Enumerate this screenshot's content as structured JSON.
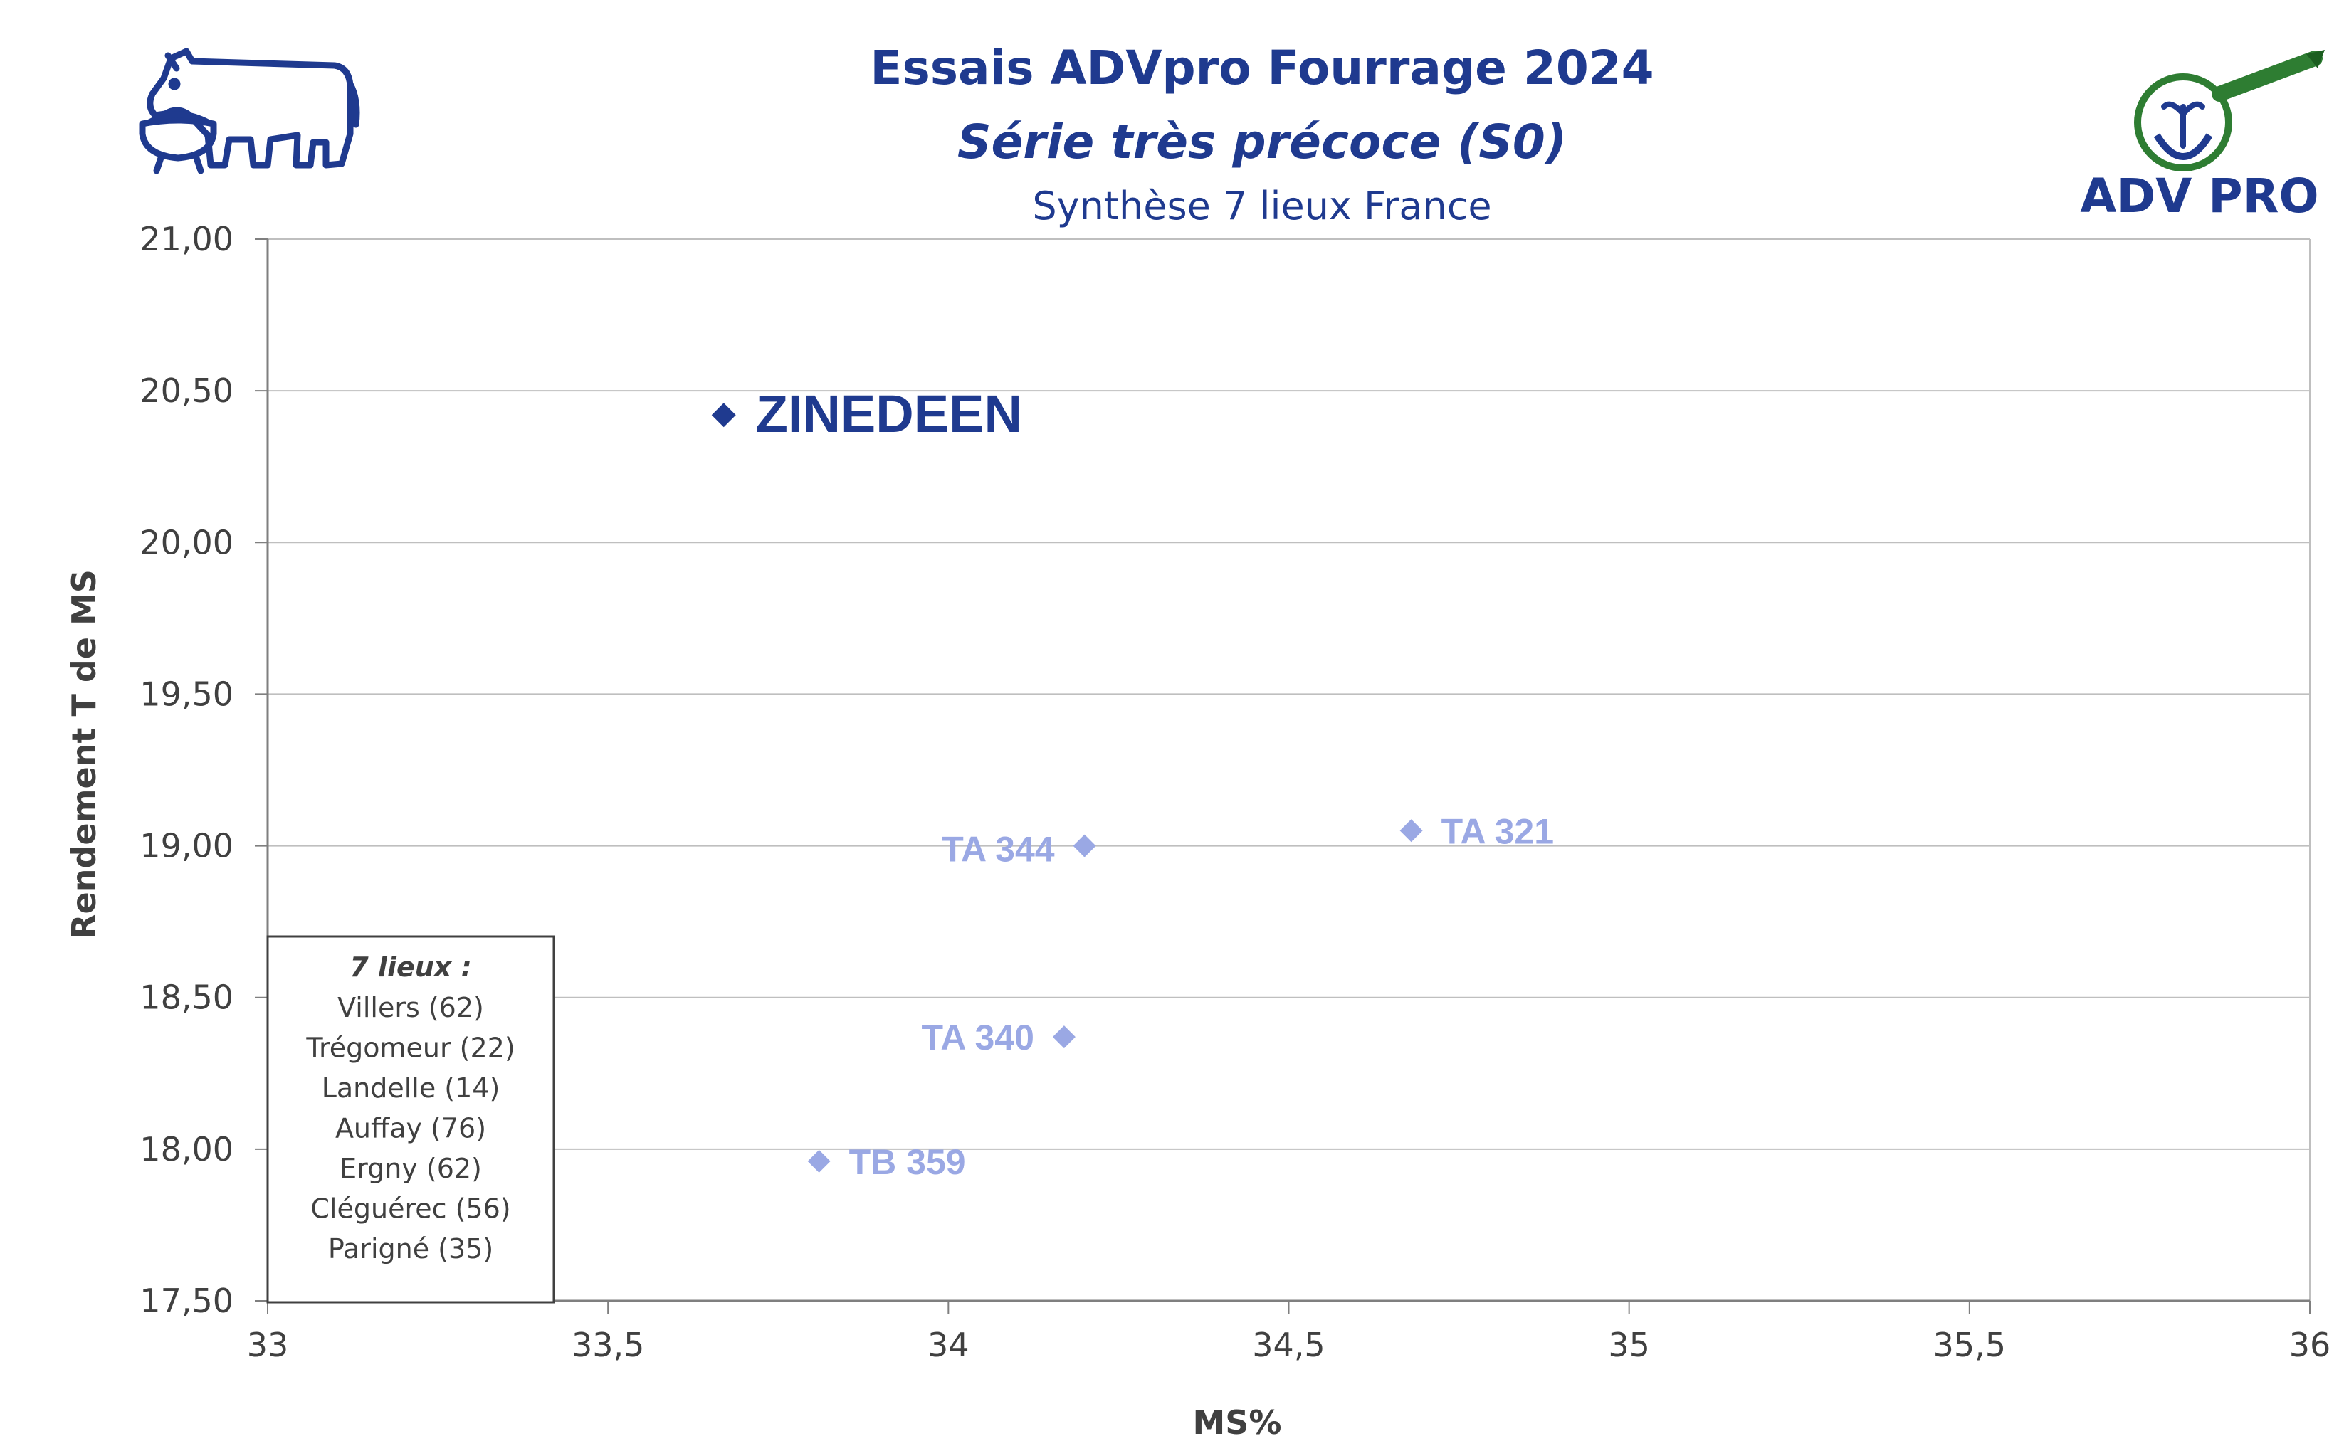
{
  "header": {
    "title": "Essais ADVpro Fourrage 2024",
    "subtitle": "Série très précoce (S0)",
    "subtitle2": "Synthèse 7 lieux France",
    "logo_text": "ADV PRO"
  },
  "colors": {
    "title": "#1f3a8f",
    "highlight": "#1f3a8f",
    "other": "#9aa8e4",
    "grid": "#bfbfbf",
    "axis": "#7f7f7f",
    "logo_green": "#2e7d32"
  },
  "icons": {
    "left_logo": "cow-icon",
    "right_logo": "magnifier-logo-icon"
  },
  "chart_data": {
    "type": "scatter",
    "xlabel": "MS%",
    "ylabel": "Rendement T de MS",
    "xlim": [
      33,
      36
    ],
    "ylim": [
      17.5,
      21.0
    ],
    "x_ticks": [
      "33",
      "33,5",
      "34",
      "34,5",
      "35",
      "35,5",
      "36"
    ],
    "y_ticks": [
      "17,50",
      "18,00",
      "18,50",
      "19,00",
      "19,50",
      "20,00",
      "20,50",
      "21,00"
    ],
    "grid": "horizontal",
    "points": [
      {
        "label": "ZINEDEEN",
        "x": 33.67,
        "y": 20.42,
        "highlight": true
      },
      {
        "label": "TA 321",
        "x": 34.68,
        "y": 19.05,
        "highlight": false
      },
      {
        "label": "TA 344",
        "x": 34.2,
        "y": 19.0,
        "highlight": false
      },
      {
        "label": "TA 340",
        "x": 34.17,
        "y": 18.37,
        "highlight": false
      },
      {
        "label": "TB 359",
        "x": 33.81,
        "y": 17.96,
        "highlight": false
      }
    ],
    "note": {
      "title": "7 lieux :",
      "lines": [
        "Villers (62)",
        "Trégomeur (22)",
        "Landelle (14)",
        "Auffay (76)",
        "Ergny (62)",
        "Cléguérec (56)",
        "Parigné (35)"
      ]
    }
  }
}
